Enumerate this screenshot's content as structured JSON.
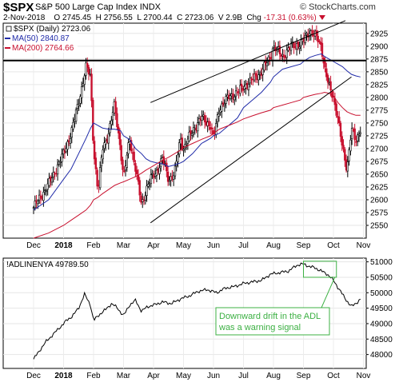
{
  "header": {
    "symbol": "$SPX",
    "name": "S&P 500 Large Cap Index",
    "exchange": "INDX",
    "brand": "© StockCharts.com",
    "date": "2-Nov-2018",
    "open_label": "O",
    "open": "2745.45",
    "high_label": "H",
    "high": "2756.55",
    "low_label": "L",
    "low": "2700.44",
    "close_label": "C",
    "close": "2723.06",
    "volume_label": "V",
    "volume": "2.9B",
    "change_label": "Chg",
    "change": "-17.31 (0.63%)"
  },
  "colors": {
    "up": "#000000",
    "down": "#c8102e",
    "ma50": "#1f2aa8",
    "ma200": "#c8102e",
    "trendlines": "#000000",
    "annotation": "#3cb043"
  },
  "chart_data": [
    {
      "type": "candlestick",
      "legend_title": "$SPX (Daily) 2723.06",
      "legend": [
        {
          "name": "MA(50) 2840.87",
          "color": "#1f2aa8"
        },
        {
          "name": "MA(200) 2764.66",
          "color": "#c8102e"
        }
      ],
      "x_ticks": [
        "Dec",
        "2018",
        "Feb",
        "Mar",
        "Apr",
        "May",
        "Jun",
        "Jul",
        "Aug",
        "Sep",
        "Oct",
        "Nov"
      ],
      "y_ticks": [
        2550,
        2575,
        2600,
        2625,
        2650,
        2675,
        2700,
        2725,
        2750,
        2775,
        2800,
        2825,
        2850,
        2875,
        2900,
        2925
      ],
      "ylim": [
        2525,
        2945
      ],
      "y_axis_position": "right",
      "horizontal_line": 2872,
      "channel_upper": [
        {
          "month": 3.9,
          "y": 2790
        },
        {
          "month": 10.4,
          "y": 2950
        }
      ],
      "channel_lower": [
        {
          "month": 3.9,
          "y": 2555
        },
        {
          "month": 10.6,
          "y": 2840
        }
      ],
      "x_months": [
        0.0,
        0.5,
        1.0,
        1.25,
        1.5,
        1.75,
        1.9,
        2.0,
        2.15,
        2.3,
        2.5,
        2.7,
        2.9,
        3.0,
        3.2,
        3.4,
        3.6,
        3.75,
        3.9,
        4.1,
        4.3,
        4.5,
        4.7,
        4.9,
        5.0,
        5.3,
        5.6,
        5.9,
        6.0,
        6.2,
        6.5,
        6.8,
        7.0,
        7.3,
        7.6,
        7.9,
        8.0,
        8.3,
        8.6,
        8.9,
        9.0,
        9.2,
        9.4,
        9.6,
        9.7,
        9.85,
        10.0,
        10.15,
        10.3,
        10.45,
        10.6,
        10.75,
        10.9
      ],
      "close": [
        2585,
        2630,
        2690,
        2730,
        2790,
        2860,
        2840,
        2700,
        2615,
        2700,
        2730,
        2785,
        2700,
        2640,
        2720,
        2660,
        2590,
        2620,
        2640,
        2655,
        2680,
        2640,
        2650,
        2720,
        2700,
        2735,
        2760,
        2745,
        2720,
        2780,
        2800,
        2810,
        2820,
        2835,
        2850,
        2880,
        2900,
        2880,
        2900,
        2905,
        2910,
        2930,
        2920,
        2900,
        2860,
        2820,
        2800,
        2760,
        2700,
        2660,
        2740,
        2710,
        2740
      ],
      "ma50": [
        2580,
        2600,
        2640,
        2660,
        2690,
        2720,
        2740,
        2750,
        2745,
        2740,
        2738,
        2738,
        2735,
        2725,
        2718,
        2700,
        2690,
        2680,
        2675,
        2672,
        2670,
        2665,
        2668,
        2672,
        2675,
        2690,
        2710,
        2720,
        2725,
        2730,
        2745,
        2760,
        2780,
        2795,
        2810,
        2830,
        2840,
        2855,
        2860,
        2865,
        2870,
        2878,
        2882,
        2885,
        2880,
        2875,
        2870,
        2865,
        2860,
        2852,
        2845,
        2842,
        2840
      ],
      "ma200": [
        2525,
        2535,
        2550,
        2560,
        2570,
        2580,
        2590,
        2600,
        2605,
        2612,
        2620,
        2628,
        2633,
        2635,
        2640,
        2645,
        2652,
        2658,
        2663,
        2670,
        2677,
        2683,
        2690,
        2697,
        2702,
        2710,
        2718,
        2725,
        2730,
        2738,
        2745,
        2752,
        2758,
        2764,
        2770,
        2775,
        2780,
        2785,
        2790,
        2795,
        2800,
        2803,
        2806,
        2808,
        2810,
        2808,
        2803,
        2790,
        2780,
        2772,
        2768,
        2765,
        2765
      ]
    },
    {
      "type": "line",
      "legend_title": "!ADLINENYA 49789.50",
      "x_ticks": [
        "Dec",
        "2018",
        "Feb",
        "Mar",
        "Apr",
        "May",
        "Jun",
        "Jul",
        "Aug",
        "Sep",
        "Oct",
        "Nov"
      ],
      "y_ticks": [
        48000,
        48500,
        49000,
        49500,
        50000,
        50500,
        51000
      ],
      "ylim": [
        47550,
        51120
      ],
      "y_axis_position": "right",
      "x_months": [
        0.0,
        0.4,
        0.8,
        1.1,
        1.3,
        1.5,
        1.7,
        1.9,
        2.0,
        2.2,
        2.4,
        2.6,
        2.8,
        3.0,
        3.2,
        3.4,
        3.6,
        3.8,
        4.0,
        4.3,
        4.6,
        4.9,
        5.2,
        5.5,
        5.8,
        6.1,
        6.4,
        6.7,
        7.0,
        7.3,
        7.6,
        7.9,
        8.2,
        8.5,
        8.8,
        9.0,
        9.2,
        9.4,
        9.6,
        9.8,
        10.0,
        10.2,
        10.4,
        10.6,
        10.8,
        10.9
      ],
      "values": [
        47850,
        48400,
        48800,
        49100,
        49250,
        49500,
        49950,
        49600,
        49100,
        49300,
        49450,
        49650,
        49500,
        49250,
        49600,
        49750,
        49400,
        49550,
        49600,
        49700,
        49650,
        49800,
        49900,
        50050,
        50100,
        50000,
        50150,
        50200,
        50300,
        50350,
        50400,
        50600,
        50650,
        50700,
        50900,
        50930,
        50850,
        50800,
        50700,
        50600,
        50400,
        50100,
        49800,
        49550,
        49700,
        49790
      ],
      "annotation": "Downward drift in the ADL was a warning signal",
      "highlight_box_months": [
        9.0,
        10.1
      ],
      "highlight_box_values": [
        50500,
        51020
      ]
    }
  ]
}
